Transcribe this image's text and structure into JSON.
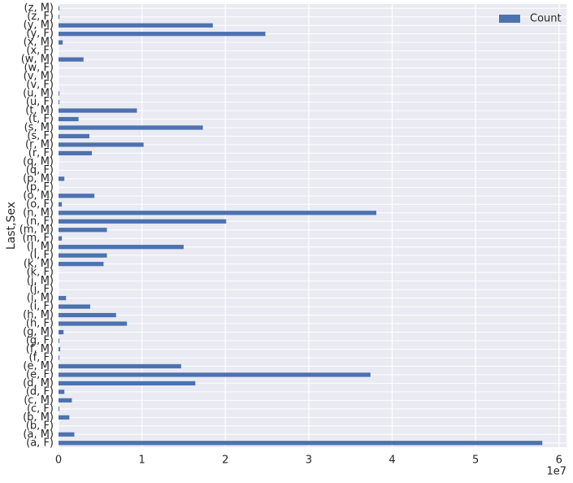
{
  "chart_data": {
    "type": "barh",
    "ylabel": "Last,Sex",
    "x_offset_label": "1e7",
    "categories": [
      "(a, F)",
      "(a, M)",
      "(b, F)",
      "(b, M)",
      "(c, F)",
      "(c, M)",
      "(d, F)",
      "(d, M)",
      "(e, F)",
      "(e, M)",
      "(f, F)",
      "(f, M)",
      "(g, F)",
      "(g, M)",
      "(h, F)",
      "(h, M)",
      "(i, F)",
      "(i, M)",
      "(j, F)",
      "(j, M)",
      "(k, F)",
      "(k, M)",
      "(l, F)",
      "(l, M)",
      "(m, F)",
      "(m, M)",
      "(n, F)",
      "(n, M)",
      "(o, F)",
      "(o, M)",
      "(p, F)",
      "(p, M)",
      "(q, F)",
      "(q, M)",
      "(r, F)",
      "(r, M)",
      "(s, F)",
      "(s, M)",
      "(t, F)",
      "(t, M)",
      "(u, F)",
      "(u, M)",
      "(v, F)",
      "(v, M)",
      "(w, F)",
      "(w, M)",
      "(x, F)",
      "(x, M)",
      "(y, F)",
      "(y, M)",
      "(z, F)",
      "(z, M)"
    ],
    "series": [
      {
        "name": "Count",
        "color": "#4c72b0",
        "values": [
          5.8,
          0.19,
          0.0,
          0.13,
          0.01,
          0.16,
          0.07,
          1.64,
          3.74,
          1.47,
          0.01,
          0.02,
          0.01,
          0.06,
          0.82,
          0.69,
          0.38,
          0.09,
          0.0,
          0.0,
          0.0,
          0.54,
          0.58,
          1.5,
          0.04,
          0.58,
          2.01,
          3.81,
          0.04,
          0.43,
          0.0,
          0.07,
          0.0,
          0.0,
          0.4,
          1.02,
          0.37,
          1.73,
          0.24,
          0.94,
          0.01,
          0.01,
          0.0,
          0.0,
          0.0,
          0.3,
          0.0,
          0.05,
          2.48,
          1.85,
          0.01,
          0.01
        ]
      }
    ],
    "xlim": [
      0,
      6.09
    ],
    "xticks": [
      0,
      1,
      2,
      3,
      4,
      5,
      6
    ],
    "grid": true,
    "legend": "upper right"
  }
}
